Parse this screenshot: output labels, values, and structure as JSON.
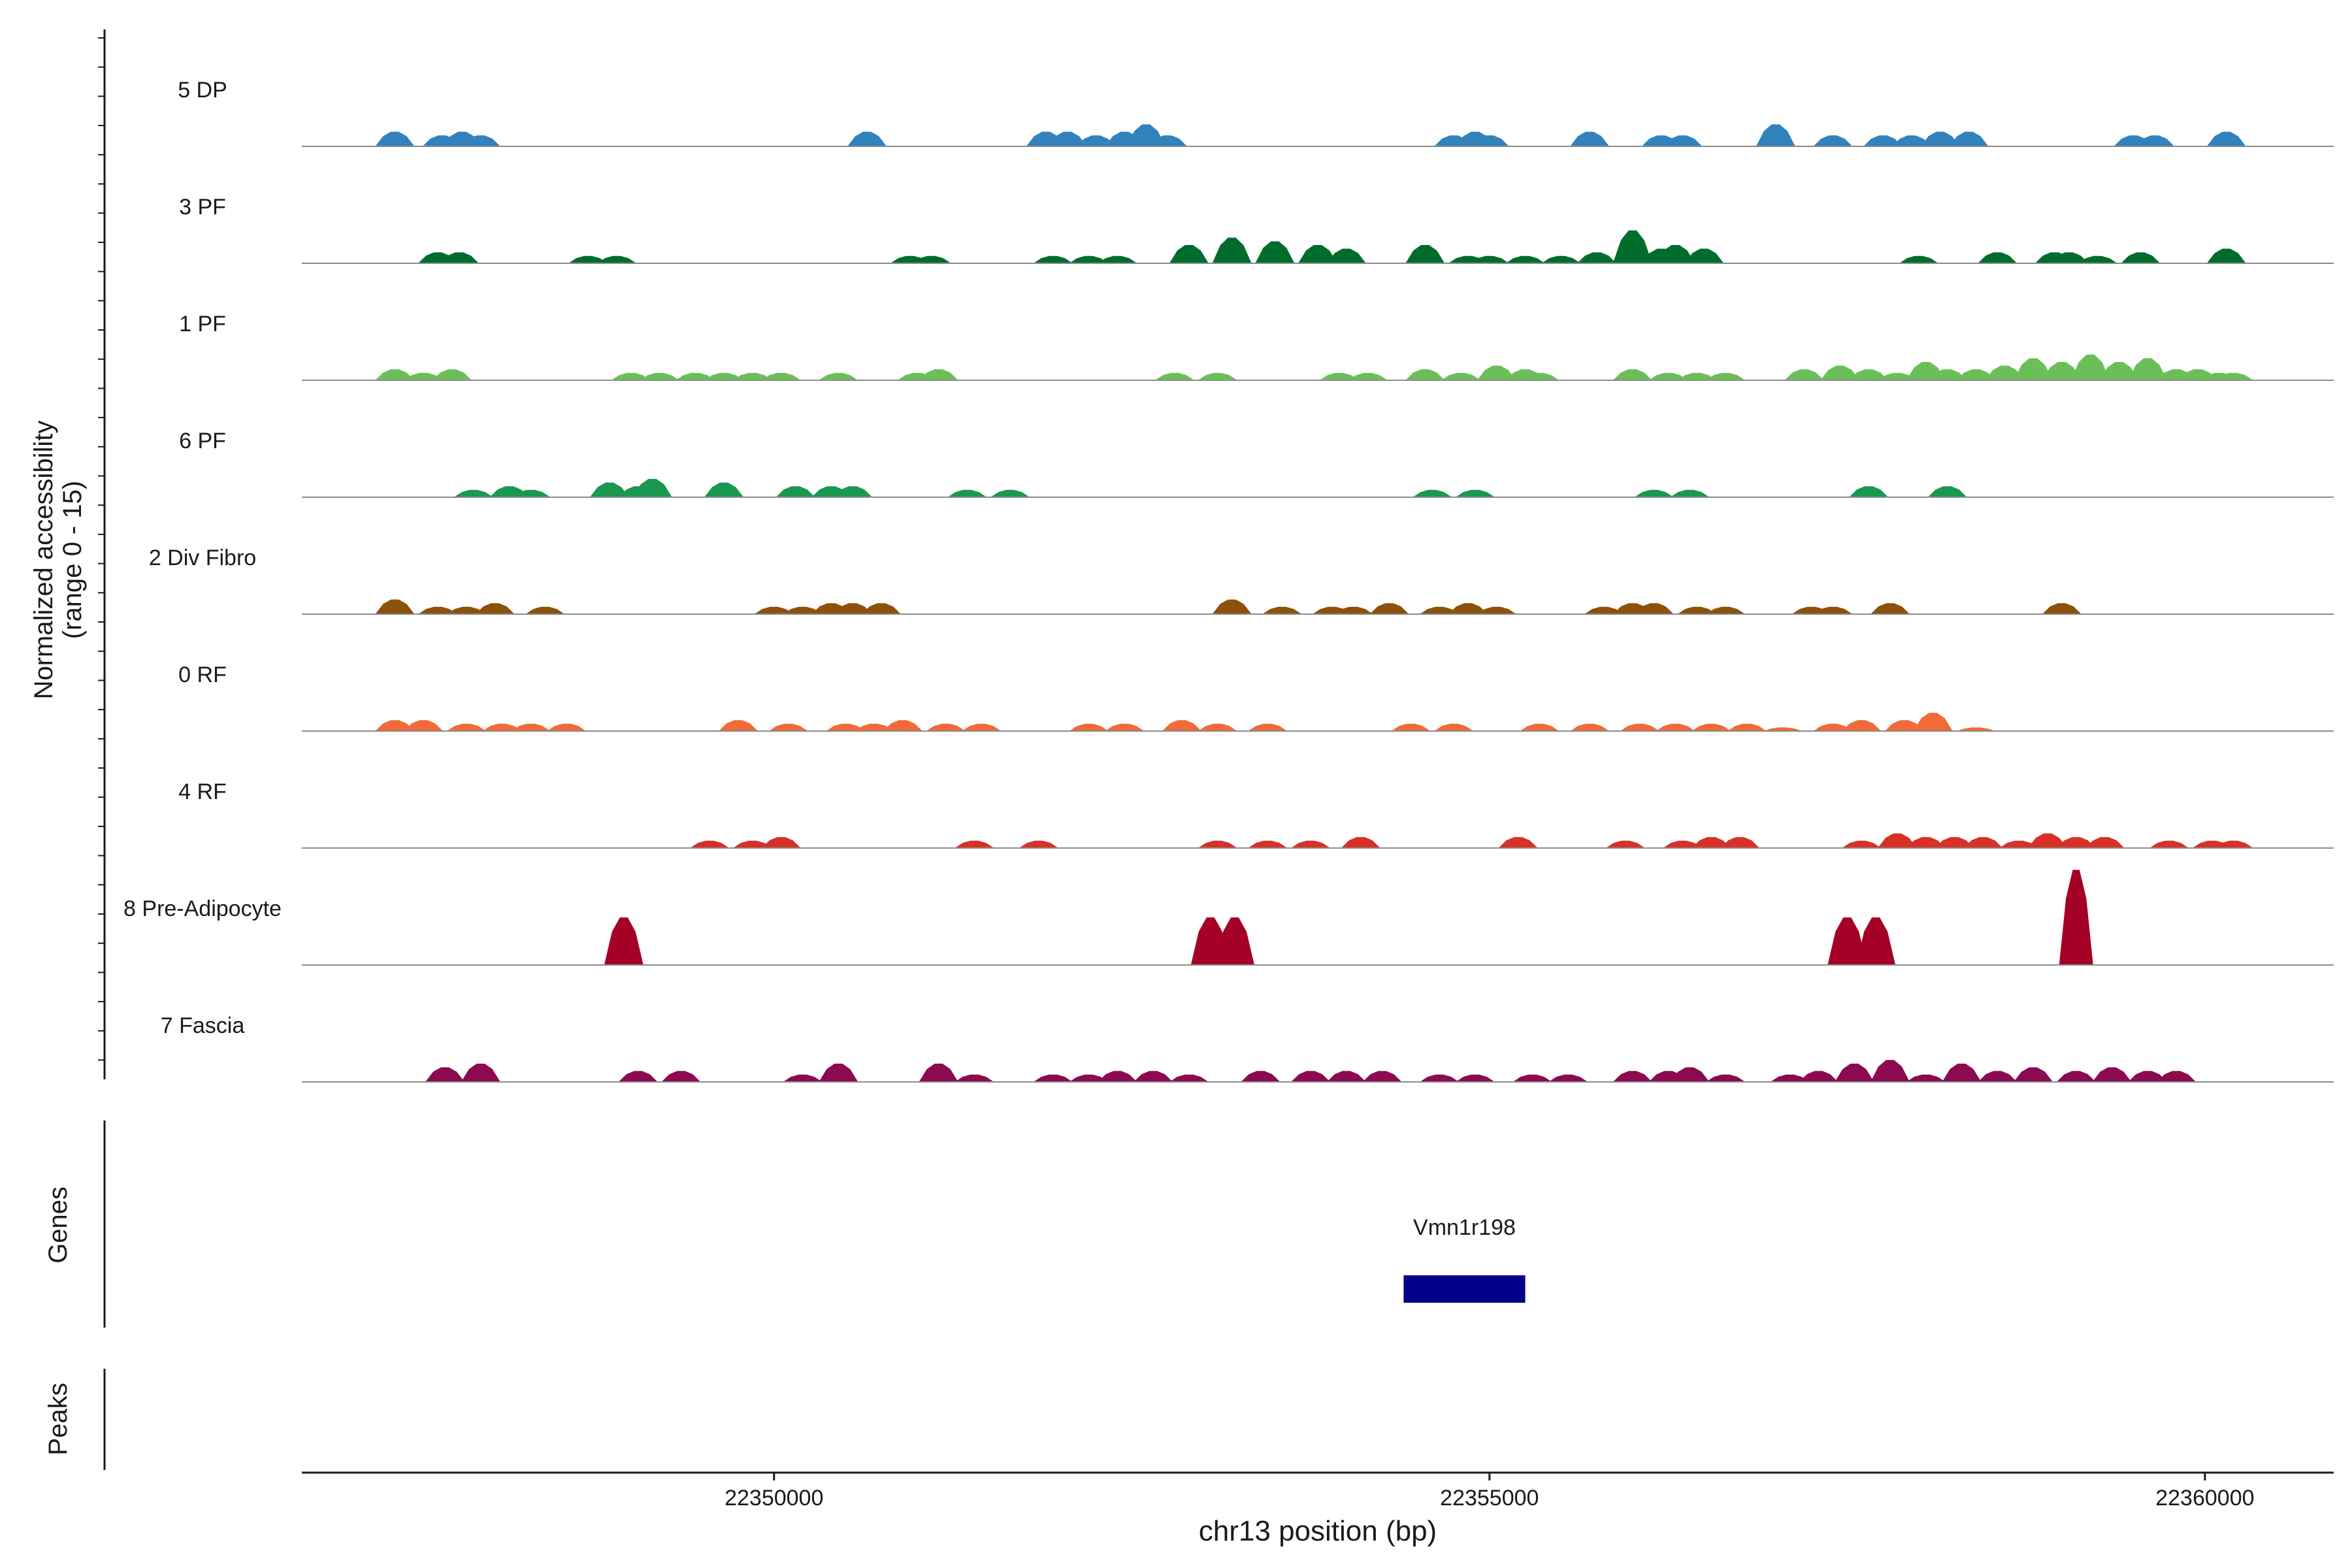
{
  "chart_data": {
    "type": "area",
    "title": "",
    "ylabel_line1": "Normalized accessibility",
    "ylabel_line2": "(range 0 - 15)",
    "xlabel": "chr13 position (bp)",
    "xlim": [
      22346700,
      22360900
    ],
    "x_ticks": [
      22350000,
      22355000,
      22360000
    ],
    "x_tick_labels": [
      "22350000",
      "22355000",
      "22360000"
    ],
    "y_range": [
      0,
      15
    ],
    "genes_label": "Genes",
    "peaks_label": "Peaks",
    "genes": [
      {
        "name": "Vmn1r198",
        "start": 22354400,
        "end": 22355250,
        "color": "#00008B"
      }
    ],
    "tracks": [
      {
        "name": "5 DP",
        "color": "#3182BD",
        "peaks": [
          [
            22347350,
            4
          ],
          [
            22347680,
            3
          ],
          [
            22347820,
            4
          ],
          [
            22347950,
            3
          ],
          [
            22350650,
            4
          ],
          [
            22351900,
            4
          ],
          [
            22352050,
            4
          ],
          [
            22352250,
            3
          ],
          [
            22352450,
            4
          ],
          [
            22352600,
            6
          ],
          [
            22352750,
            3
          ],
          [
            22354750,
            3
          ],
          [
            22354900,
            4
          ],
          [
            22355000,
            3
          ],
          [
            22355700,
            4
          ],
          [
            22356200,
            3
          ],
          [
            22356350,
            3
          ],
          [
            22357000,
            6
          ],
          [
            22357400,
            3
          ],
          [
            22357750,
            3
          ],
          [
            22357950,
            3
          ],
          [
            22358150,
            4
          ],
          [
            22358350,
            4
          ],
          [
            22359500,
            3
          ],
          [
            22359650,
            3
          ],
          [
            22360150,
            4
          ]
        ]
      },
      {
        "name": "3 PF",
        "color": "#006D2C",
        "peaks": [
          [
            22347650,
            3
          ],
          [
            22347800,
            3
          ],
          [
            22348700,
            2
          ],
          [
            22348900,
            2
          ],
          [
            22350950,
            2
          ],
          [
            22351100,
            2
          ],
          [
            22351950,
            2
          ],
          [
            22352200,
            2
          ],
          [
            22352400,
            2
          ],
          [
            22352900,
            5
          ],
          [
            22353200,
            7
          ],
          [
            22353500,
            6
          ],
          [
            22353800,
            5
          ],
          [
            22354000,
            4
          ],
          [
            22354550,
            5
          ],
          [
            22354850,
            2
          ],
          [
            22355000,
            2
          ],
          [
            22355250,
            2
          ],
          [
            22355500,
            2
          ],
          [
            22355750,
            3
          ],
          [
            22356000,
            9
          ],
          [
            22356200,
            4
          ],
          [
            22356300,
            5
          ],
          [
            22356500,
            4
          ],
          [
            22358000,
            2
          ],
          [
            22358550,
            3
          ],
          [
            22358950,
            3
          ],
          [
            22359050,
            3
          ],
          [
            22359250,
            2
          ],
          [
            22359550,
            3
          ],
          [
            22360150,
            4
          ]
        ]
      },
      {
        "name": "1 PF",
        "color": "#6BBF59",
        "peaks": [
          [
            22347350,
            3
          ],
          [
            22347550,
            2
          ],
          [
            22347750,
            3
          ],
          [
            22349000,
            2
          ],
          [
            22349200,
            2
          ],
          [
            22349450,
            2
          ],
          [
            22349650,
            2
          ],
          [
            22349850,
            2
          ],
          [
            22350050,
            2
          ],
          [
            22350450,
            2
          ],
          [
            22351000,
            2
          ],
          [
            22351150,
            3
          ],
          [
            22352800,
            2
          ],
          [
            22353100,
            2
          ],
          [
            22353950,
            2
          ],
          [
            22354150,
            2
          ],
          [
            22354550,
            3
          ],
          [
            22354800,
            2
          ],
          [
            22355050,
            4
          ],
          [
            22355250,
            3
          ],
          [
            22355350,
            2
          ],
          [
            22356000,
            3
          ],
          [
            22356250,
            2
          ],
          [
            22356450,
            2
          ],
          [
            22356650,
            2
          ],
          [
            22357200,
            3
          ],
          [
            22357450,
            4
          ],
          [
            22357650,
            3
          ],
          [
            22357850,
            2
          ],
          [
            22358050,
            5
          ],
          [
            22358200,
            3
          ],
          [
            22358400,
            3
          ],
          [
            22358600,
            4
          ],
          [
            22358800,
            6
          ],
          [
            22359000,
            5
          ],
          [
            22359200,
            7
          ],
          [
            22359400,
            5
          ],
          [
            22359600,
            6
          ],
          [
            22359800,
            3
          ],
          [
            22359950,
            3
          ],
          [
            22360100,
            2
          ],
          [
            22360200,
            2
          ]
        ]
      },
      {
        "name": "6 PF",
        "color": "#1A9850",
        "peaks": [
          [
            22347900,
            2
          ],
          [
            22348150,
            3
          ],
          [
            22348300,
            2
          ],
          [
            22348850,
            4
          ],
          [
            22349050,
            3
          ],
          [
            22349150,
            5
          ],
          [
            22349650,
            4
          ],
          [
            22350150,
            3
          ],
          [
            22350400,
            3
          ],
          [
            22350550,
            3
          ],
          [
            22351350,
            2
          ],
          [
            22351650,
            2
          ],
          [
            22354600,
            2
          ],
          [
            22354900,
            2
          ],
          [
            22356150,
            2
          ],
          [
            22356400,
            2
          ],
          [
            22357650,
            3
          ],
          [
            22358200,
            3
          ]
        ]
      },
      {
        "name": "2 Div Fibro",
        "color": "#8C510A",
        "peaks": [
          [
            22347350,
            4
          ],
          [
            22347650,
            2
          ],
          [
            22347850,
            2
          ],
          [
            22348050,
            3
          ],
          [
            22348400,
            2
          ],
          [
            22350000,
            2
          ],
          [
            22350200,
            2
          ],
          [
            22350400,
            3
          ],
          [
            22350550,
            3
          ],
          [
            22350750,
            3
          ],
          [
            22353200,
            4
          ],
          [
            22353550,
            2
          ],
          [
            22353900,
            2
          ],
          [
            22354050,
            2
          ],
          [
            22354300,
            3
          ],
          [
            22354650,
            2
          ],
          [
            22354850,
            3
          ],
          [
            22355050,
            2
          ],
          [
            22355800,
            2
          ],
          [
            22356000,
            3
          ],
          [
            22356150,
            3
          ],
          [
            22356450,
            2
          ],
          [
            22356650,
            2
          ],
          [
            22357250,
            2
          ],
          [
            22357400,
            2
          ],
          [
            22357800,
            3
          ],
          [
            22359000,
            3
          ]
        ]
      },
      {
        "name": "0 RF",
        "color": "#F06A3A",
        "peaks": [
          [
            22347350,
            3
          ],
          [
            22347550,
            3
          ],
          [
            22347850,
            2
          ],
          [
            22348100,
            2
          ],
          [
            22348300,
            2
          ],
          [
            22348550,
            2
          ],
          [
            22349750,
            3
          ],
          [
            22350100,
            2
          ],
          [
            22350500,
            2
          ],
          [
            22350700,
            2
          ],
          [
            22350900,
            3
          ],
          [
            22351200,
            2
          ],
          [
            22351450,
            2
          ],
          [
            22352200,
            2
          ],
          [
            22352450,
            2
          ],
          [
            22352850,
            3
          ],
          [
            22353100,
            2
          ],
          [
            22353450,
            2
          ],
          [
            22354450,
            2
          ],
          [
            22354750,
            2
          ],
          [
            22355350,
            2
          ],
          [
            22355700,
            2
          ],
          [
            22356050,
            2
          ],
          [
            22356300,
            2
          ],
          [
            22356550,
            2
          ],
          [
            22356800,
            2
          ],
          [
            22357050,
            1
          ],
          [
            22357400,
            2
          ],
          [
            22357600,
            3
          ],
          [
            22357900,
            3
          ],
          [
            22358100,
            5
          ],
          [
            22358400,
            1
          ]
        ]
      },
      {
        "name": "4 RF",
        "color": "#D73027",
        "peaks": [
          [
            22349550,
            2
          ],
          [
            22349850,
            2
          ],
          [
            22350050,
            3
          ],
          [
            22351400,
            2
          ],
          [
            22351850,
            2
          ],
          [
            22353100,
            2
          ],
          [
            22353450,
            2
          ],
          [
            22353750,
            2
          ],
          [
            22354100,
            3
          ],
          [
            22355200,
            3
          ],
          [
            22355950,
            2
          ],
          [
            22356350,
            2
          ],
          [
            22356550,
            3
          ],
          [
            22356750,
            3
          ],
          [
            22357600,
            2
          ],
          [
            22357850,
            4
          ],
          [
            22358050,
            3
          ],
          [
            22358250,
            3
          ],
          [
            22358450,
            3
          ],
          [
            22358700,
            2
          ],
          [
            22358900,
            4
          ],
          [
            22359100,
            3
          ],
          [
            22359300,
            3
          ],
          [
            22359750,
            2
          ],
          [
            22360050,
            2
          ],
          [
            22360200,
            2
          ]
        ]
      },
      {
        "name": "8 Pre-Adipocyte",
        "color": "#A50026",
        "peaks": [
          [
            22348950,
            13
          ],
          [
            22353050,
            13
          ],
          [
            22353220,
            13
          ],
          [
            22357500,
            13
          ],
          [
            22357700,
            13
          ],
          [
            22359100,
            26
          ]
        ]
      },
      {
        "name": "7 Fascia",
        "color": "#8B0A50",
        "peaks": [
          [
            22347700,
            4
          ],
          [
            22347950,
            5
          ],
          [
            22349050,
            3
          ],
          [
            22349350,
            3
          ],
          [
            22350200,
            2
          ],
          [
            22350450,
            5
          ],
          [
            22351150,
            5
          ],
          [
            22351400,
            2
          ],
          [
            22351950,
            2
          ],
          [
            22352200,
            2
          ],
          [
            22352400,
            3
          ],
          [
            22352650,
            3
          ],
          [
            22352900,
            2
          ],
          [
            22353400,
            3
          ],
          [
            22353750,
            3
          ],
          [
            22354000,
            3
          ],
          [
            22354250,
            3
          ],
          [
            22354650,
            2
          ],
          [
            22354900,
            2
          ],
          [
            22355300,
            2
          ],
          [
            22355550,
            2
          ],
          [
            22356000,
            3
          ],
          [
            22356250,
            3
          ],
          [
            22356400,
            4
          ],
          [
            22356650,
            2
          ],
          [
            22357100,
            2
          ],
          [
            22357300,
            3
          ],
          [
            22357550,
            5
          ],
          [
            22357800,
            6
          ],
          [
            22358050,
            2
          ],
          [
            22358300,
            5
          ],
          [
            22358550,
            3
          ],
          [
            22358800,
            4
          ],
          [
            22359100,
            3
          ],
          [
            22359350,
            4
          ],
          [
            22359600,
            3
          ],
          [
            22359800,
            3
          ]
        ]
      }
    ]
  }
}
